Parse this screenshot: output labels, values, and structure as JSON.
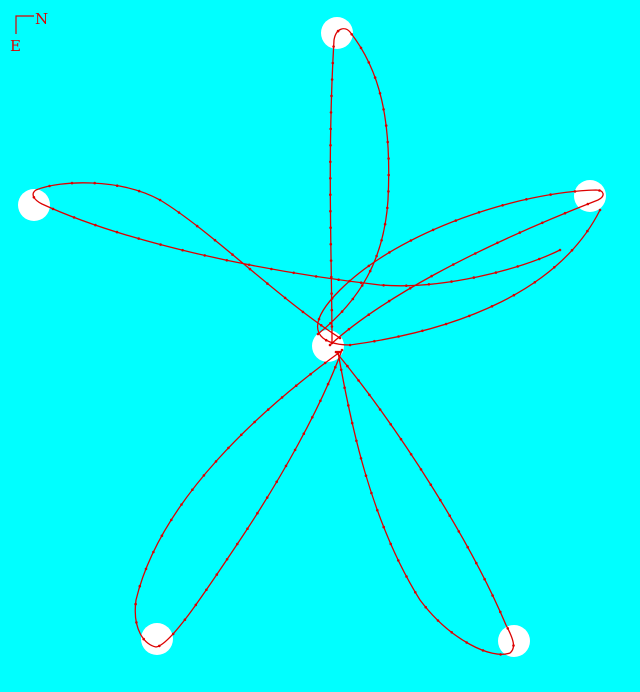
{
  "compass": {
    "north_label": "N",
    "east_label": "E"
  },
  "colors": {
    "background": "#00ffff",
    "orbit": "#dd0000",
    "body": "#ffffff",
    "compass": "#dd0000"
  },
  "diagram": {
    "type": "orbit",
    "lobes": 5,
    "orbit_points_per_lobe": 40
  }
}
